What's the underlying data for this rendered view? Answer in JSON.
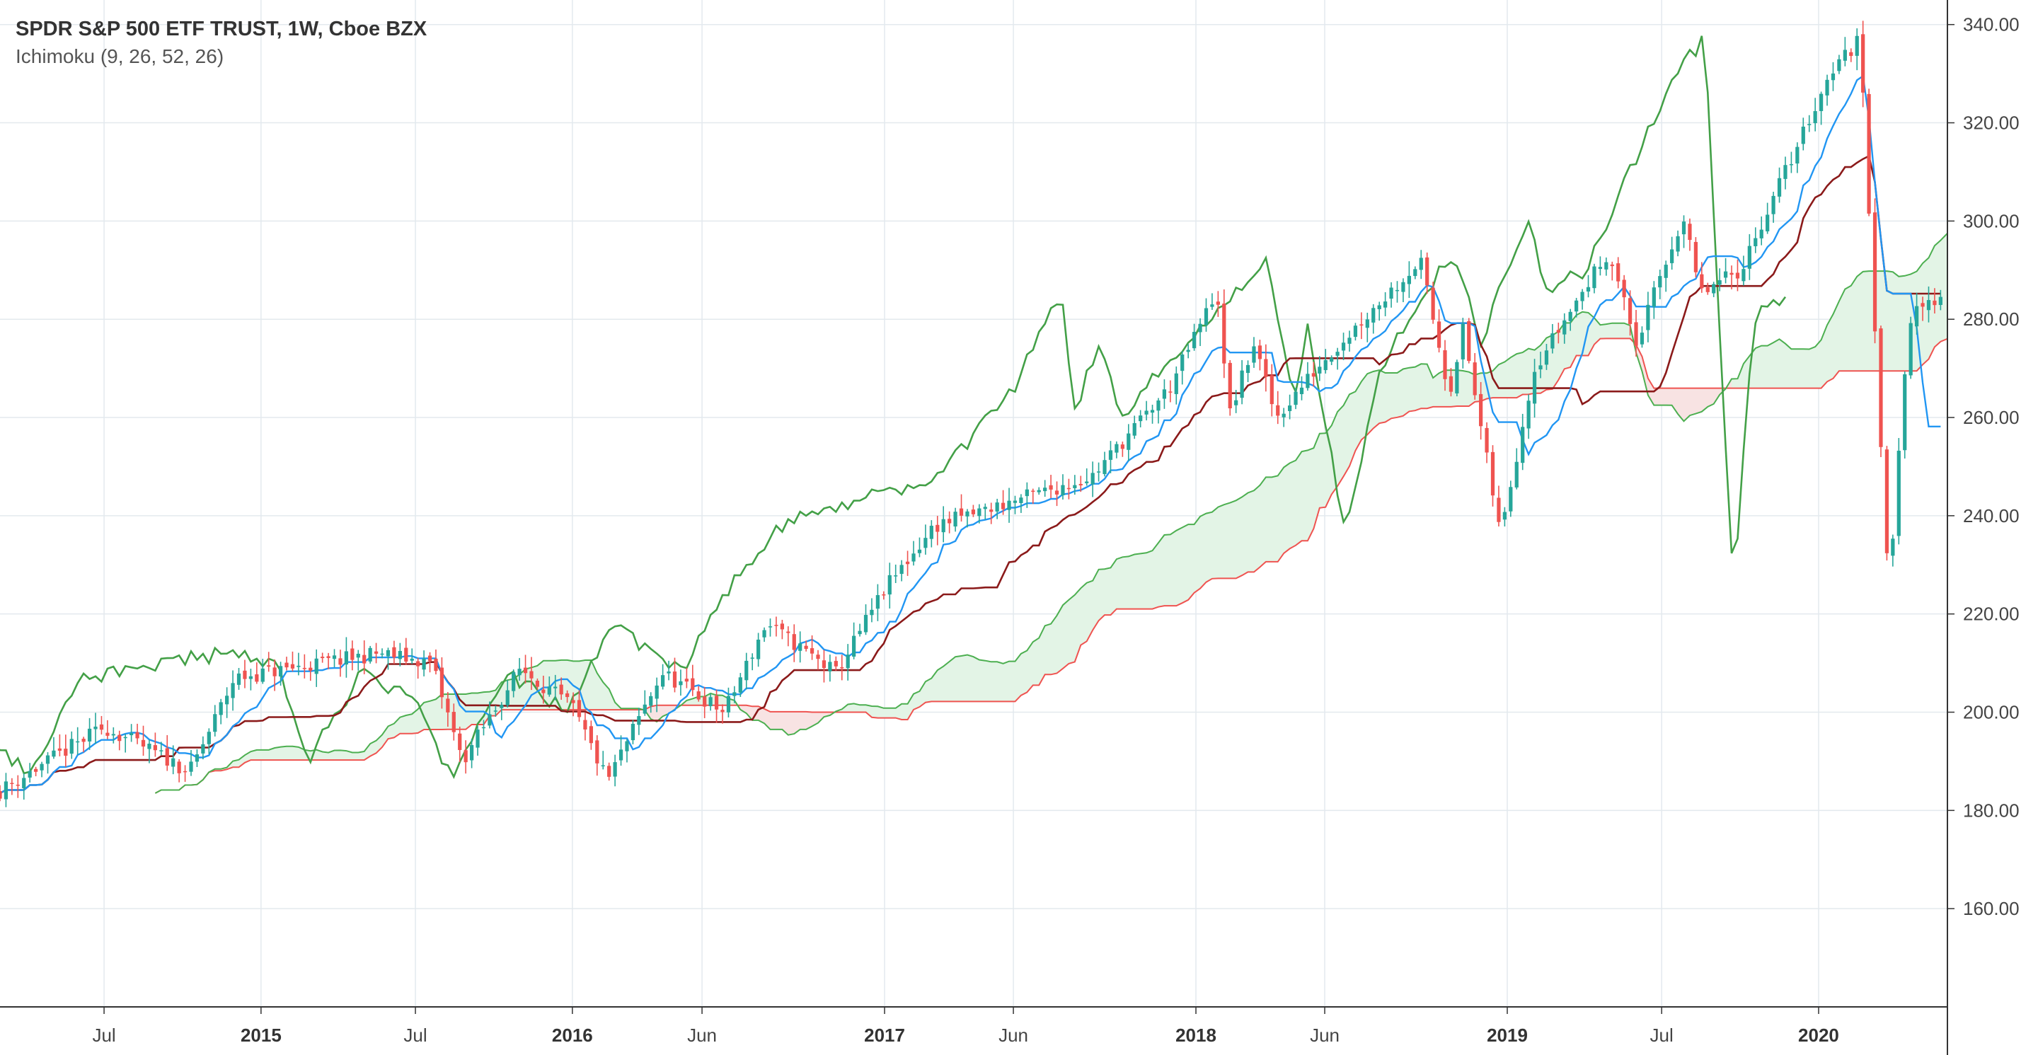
{
  "chart_data": {
    "type": "candlestick",
    "title": "SPDR S&P 500 ETF TRUST, 1W, Cboe BZX",
    "indicator": "Ichimoku (9, 26, 52, 26)",
    "x_range": [
      "2014-03-01",
      "2020-05-31"
    ],
    "ylim": [
      140,
      345
    ],
    "y_ticks": [
      "160.00",
      "180.00",
      "200.00",
      "220.00",
      "240.00",
      "260.00",
      "280.00",
      "300.00",
      "320.00",
      "340.00"
    ],
    "x_ticks": [
      {
        "label": "Jul",
        "date": "2014-07-01",
        "major": false
      },
      {
        "label": "2015",
        "date": "2015-01-01",
        "major": true
      },
      {
        "label": "Jul",
        "date": "2015-07-01",
        "major": false
      },
      {
        "label": "2016",
        "date": "2016-01-01",
        "major": true
      },
      {
        "label": "Jun",
        "date": "2016-06-01",
        "major": false
      },
      {
        "label": "2017",
        "date": "2017-01-01",
        "major": true
      },
      {
        "label": "Jun",
        "date": "2017-06-01",
        "major": false
      },
      {
        "label": "2018",
        "date": "2018-01-01",
        "major": true
      },
      {
        "label": "Jun",
        "date": "2018-06-01",
        "major": false
      },
      {
        "label": "2019",
        "date": "2019-01-01",
        "major": true
      },
      {
        "label": "Jul",
        "date": "2019-07-01",
        "major": false
      },
      {
        "label": "2020",
        "date": "2020-01-01",
        "major": true
      }
    ],
    "grid": true,
    "colors": {
      "up": "#26a69a",
      "down": "#ef5350",
      "conversion_line": "#2196f3",
      "base_line": "#8b1a1a",
      "lagging_span": "#43a047",
      "lead_a": "#4caf50",
      "lead_b": "#ef5350",
      "cloud_bull": "#e3f4e6",
      "cloud_bear": "#f8e3e3",
      "grid": "#e3e9ee",
      "axis": "#333333"
    },
    "close_keypoints": [
      {
        "date": "2014-03-01",
        "value": 184
      },
      {
        "date": "2014-07-01",
        "value": 197
      },
      {
        "date": "2014-10-10",
        "value": 188
      },
      {
        "date": "2014-12-01",
        "value": 207
      },
      {
        "date": "2015-05-20",
        "value": 212
      },
      {
        "date": "2015-07-20",
        "value": 210
      },
      {
        "date": "2015-08-25",
        "value": 190
      },
      {
        "date": "2015-11-01",
        "value": 209
      },
      {
        "date": "2016-01-01",
        "value": 201
      },
      {
        "date": "2016-02-11",
        "value": 186
      },
      {
        "date": "2016-04-15",
        "value": 208
      },
      {
        "date": "2016-06-27",
        "value": 200
      },
      {
        "date": "2016-08-15",
        "value": 218
      },
      {
        "date": "2016-11-05",
        "value": 208
      },
      {
        "date": "2017-01-01",
        "value": 225
      },
      {
        "date": "2017-03-01",
        "value": 238
      },
      {
        "date": "2017-06-01",
        "value": 243
      },
      {
        "date": "2017-09-01",
        "value": 248
      },
      {
        "date": "2017-12-01",
        "value": 266
      },
      {
        "date": "2018-01-26",
        "value": 286
      },
      {
        "date": "2018-02-08",
        "value": 260
      },
      {
        "date": "2018-03-10",
        "value": 275
      },
      {
        "date": "2018-04-05",
        "value": 260
      },
      {
        "date": "2018-06-01",
        "value": 272
      },
      {
        "date": "2018-09-21",
        "value": 292
      },
      {
        "date": "2018-10-25",
        "value": 265
      },
      {
        "date": "2018-11-10",
        "value": 278
      },
      {
        "date": "2018-12-24",
        "value": 236
      },
      {
        "date": "2019-02-01",
        "value": 270
      },
      {
        "date": "2019-04-30",
        "value": 294
      },
      {
        "date": "2019-06-01",
        "value": 275
      },
      {
        "date": "2019-07-26",
        "value": 301
      },
      {
        "date": "2019-08-15",
        "value": 285
      },
      {
        "date": "2019-10-01",
        "value": 290
      },
      {
        "date": "2020-01-17",
        "value": 331
      },
      {
        "date": "2020-02-19",
        "value": 337
      },
      {
        "date": "2020-03-23",
        "value": 224
      },
      {
        "date": "2020-04-15",
        "value": 280
      },
      {
        "date": "2020-05-25",
        "value": 285
      }
    ]
  }
}
